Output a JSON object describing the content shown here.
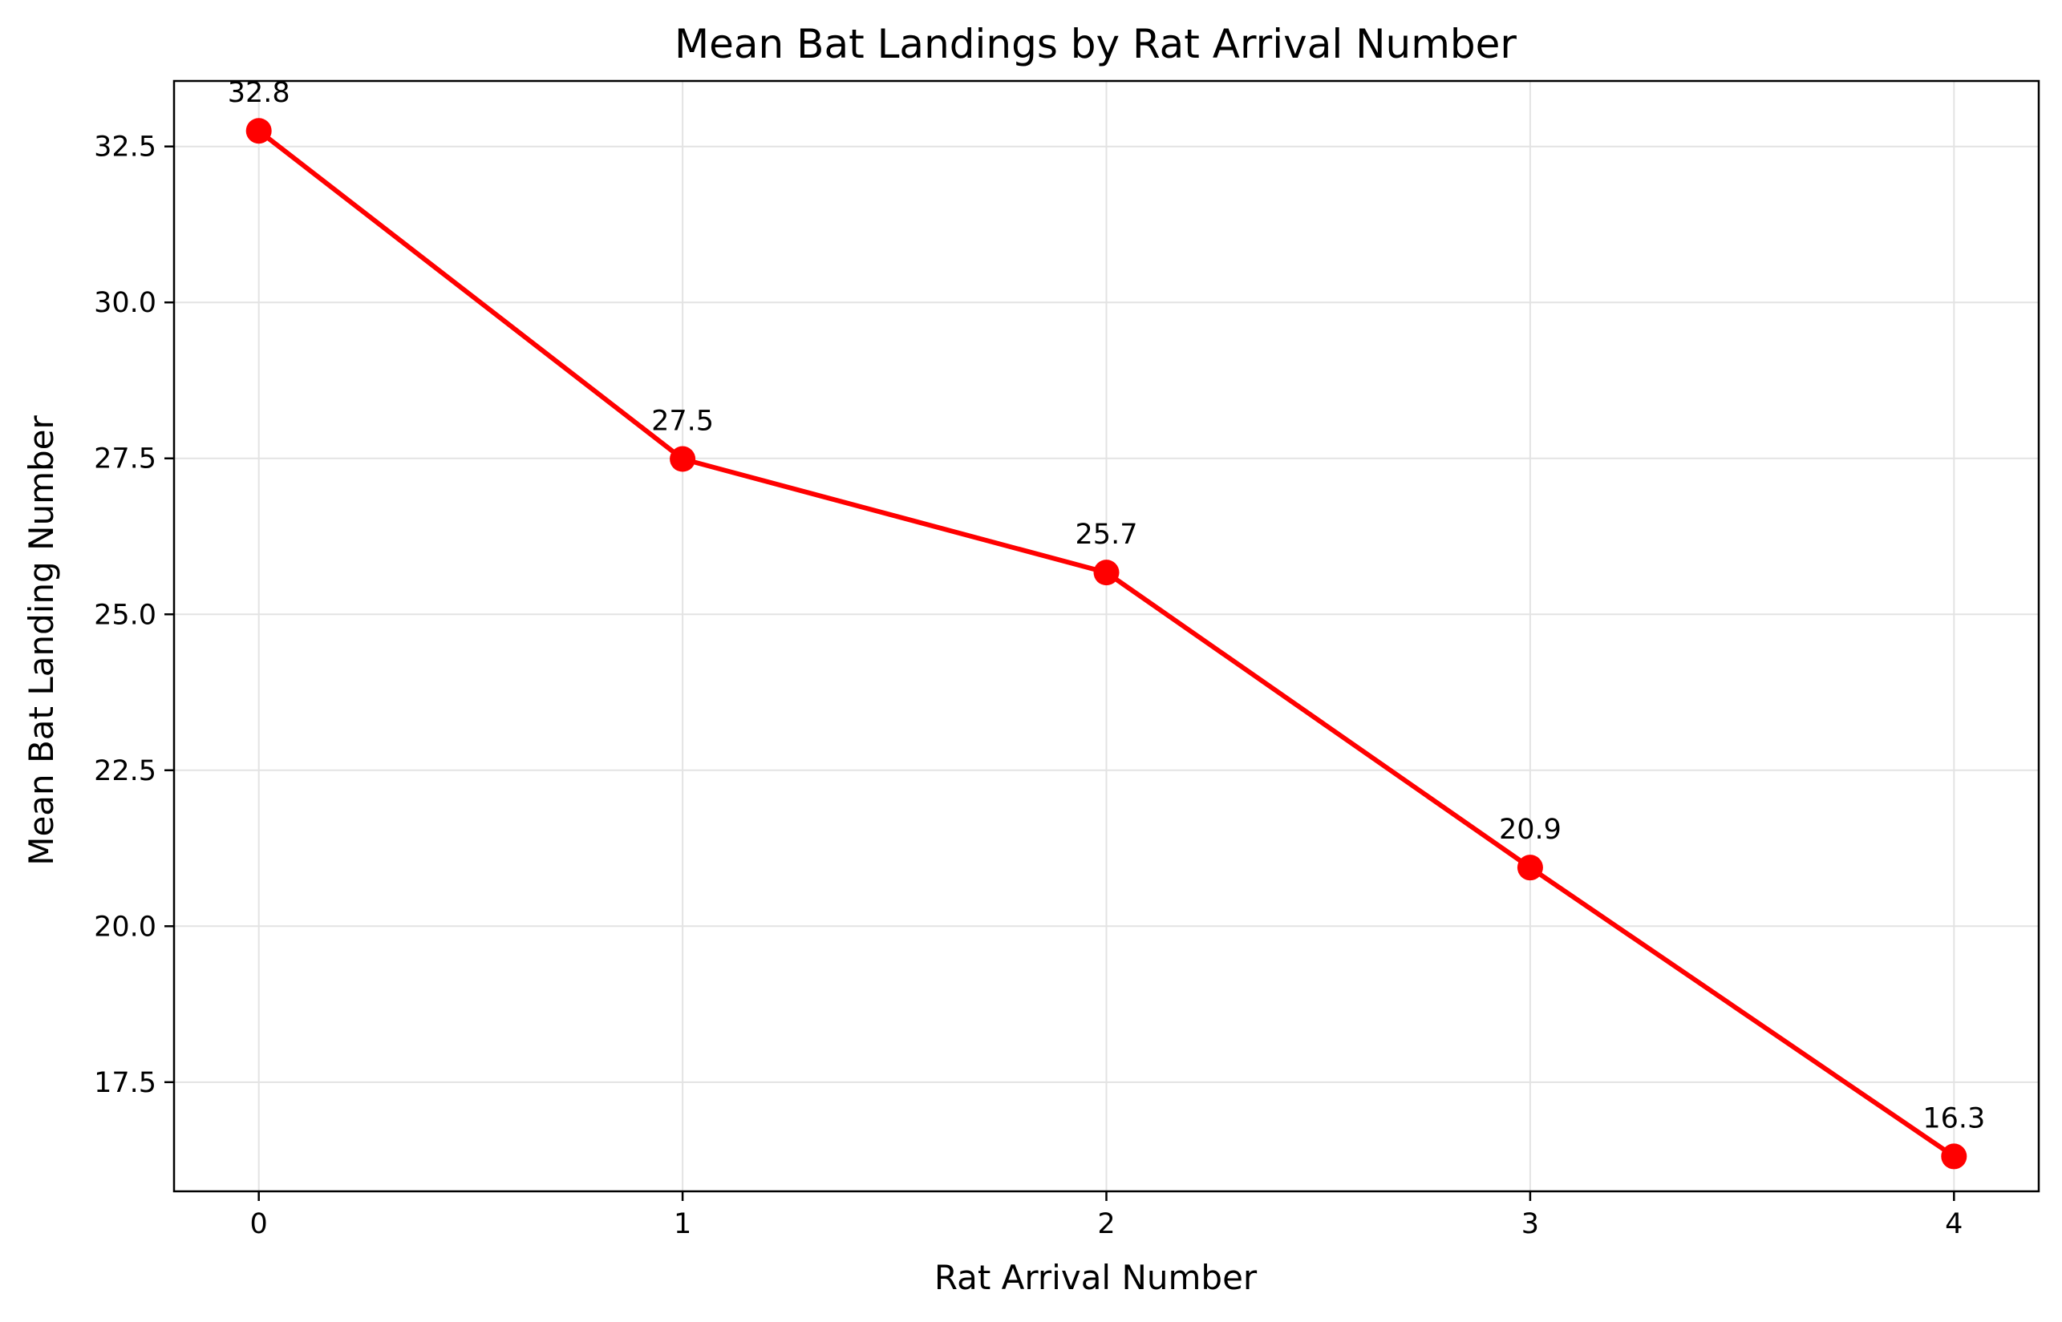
{
  "chart_data": {
    "type": "line",
    "title": "Mean Bat Landings by Rat Arrival Number",
    "xlabel": "Rat Arrival Number",
    "ylabel": "Mean Bat Landing Number",
    "x": [
      0,
      1,
      2,
      3,
      4
    ],
    "x_ticks": [
      "0",
      "1",
      "2",
      "3",
      "4"
    ],
    "xlim": [
      -0.2,
      4.2
    ],
    "ylim": [
      15.75,
      33.55
    ],
    "y_ticks": [
      "17.5",
      "20.0",
      "22.5",
      "25.0",
      "27.5",
      "30.0",
      "32.5"
    ],
    "grid": true,
    "series": [
      {
        "values": [
          32.75,
          27.49,
          25.67,
          20.94,
          16.31
        ],
        "labels": [
          "32.8",
          "27.5",
          "25.7",
          "20.9",
          "16.3"
        ],
        "color": "#ff0000",
        "marker": "circle"
      }
    ]
  }
}
